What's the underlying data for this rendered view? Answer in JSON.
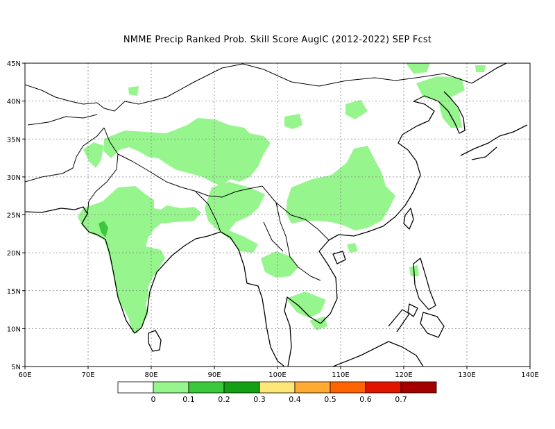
{
  "title": "NMME Precip Ranked Prob. Skill Score AugIC (2012-2022) SEP Fcst",
  "map": {
    "lon_range": [
      60,
      140
    ],
    "lat_range": [
      5,
      45
    ],
    "lon_ticks": [
      "60E",
      "70E",
      "80E",
      "90E",
      "100E",
      "110E",
      "120E",
      "130E",
      "140E"
    ],
    "lat_ticks": [
      "5N",
      "10N",
      "15N",
      "20N",
      "25N",
      "30N",
      "35N",
      "40N",
      "45N"
    ],
    "region": "South and East Asia"
  },
  "colorbar": {
    "labels": [
      "0",
      "0.1",
      "0.2",
      "0.3",
      "0.4",
      "0.5",
      "0.6",
      "0.7"
    ],
    "colors": [
      "#ffffff",
      "#96f58c",
      "#3cc83c",
      "#14a014",
      "#ffe678",
      "#ffaa32",
      "#ff6400",
      "#e11400",
      "#a50000"
    ]
  },
  "colors": {
    "coast": "#000000",
    "grid": "#7f7f7f",
    "skill_low": "#96f58c",
    "skill_mid": "#3cc83c"
  }
}
